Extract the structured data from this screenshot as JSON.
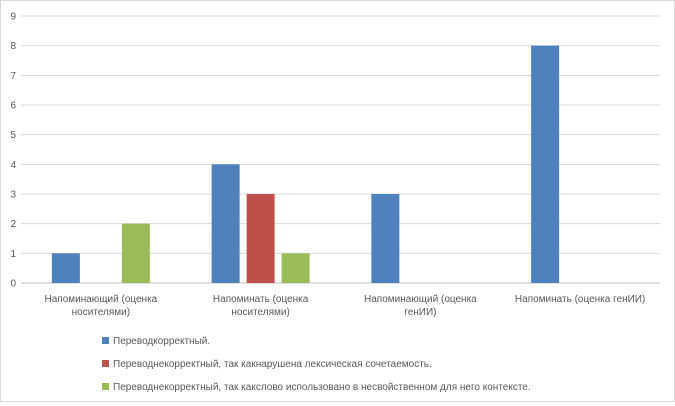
{
  "chart_data": {
    "type": "bar",
    "title": "",
    "xlabel": "",
    "ylabel": "",
    "ylim": [
      0,
      9
    ],
    "yticks": [
      0,
      1,
      2,
      3,
      4,
      5,
      6,
      7,
      8,
      9
    ],
    "grid": true,
    "legend_position": "bottom",
    "categories": [
      [
        "Напоминающий (оценка",
        "носителями)"
      ],
      [
        "Напоминать (оценка",
        "носителями)"
      ],
      [
        "Напоминающий  (оценка",
        "генИИ)"
      ],
      [
        "Напоминать (оценка генИИ)"
      ]
    ],
    "series": [
      {
        "name": "Переводкорректный.",
        "color": "#4f81bd",
        "values": [
          1,
          4,
          3,
          8
        ]
      },
      {
        "name": "Переводнекорректный, так какнарушена лексическая сочетаемость.",
        "color": "#c0504d",
        "values": [
          0,
          3,
          0,
          0
        ]
      },
      {
        "name": "Переводнекорректный, так какслово использовано в несвойственном для него контексте.",
        "color": "#9bbb59",
        "values": [
          2,
          1,
          0,
          0
        ]
      }
    ]
  }
}
